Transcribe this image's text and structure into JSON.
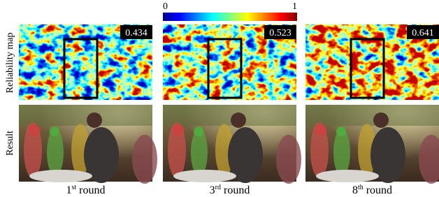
{
  "colorbar": {
    "min_label": "0",
    "max_label": "1"
  },
  "row_labels": [
    "Reliability map",
    "Result"
  ],
  "columns": [
    {
      "score": "0.434",
      "caption": {
        "number": "1",
        "suffix": "st",
        "word": "round"
      }
    },
    {
      "score": "0.523",
      "caption": {
        "number": "3",
        "suffix": "rd",
        "word": "round"
      }
    },
    {
      "score": "0.641",
      "caption": {
        "number": "8",
        "suffix": "th",
        "word": "round"
      }
    }
  ]
}
